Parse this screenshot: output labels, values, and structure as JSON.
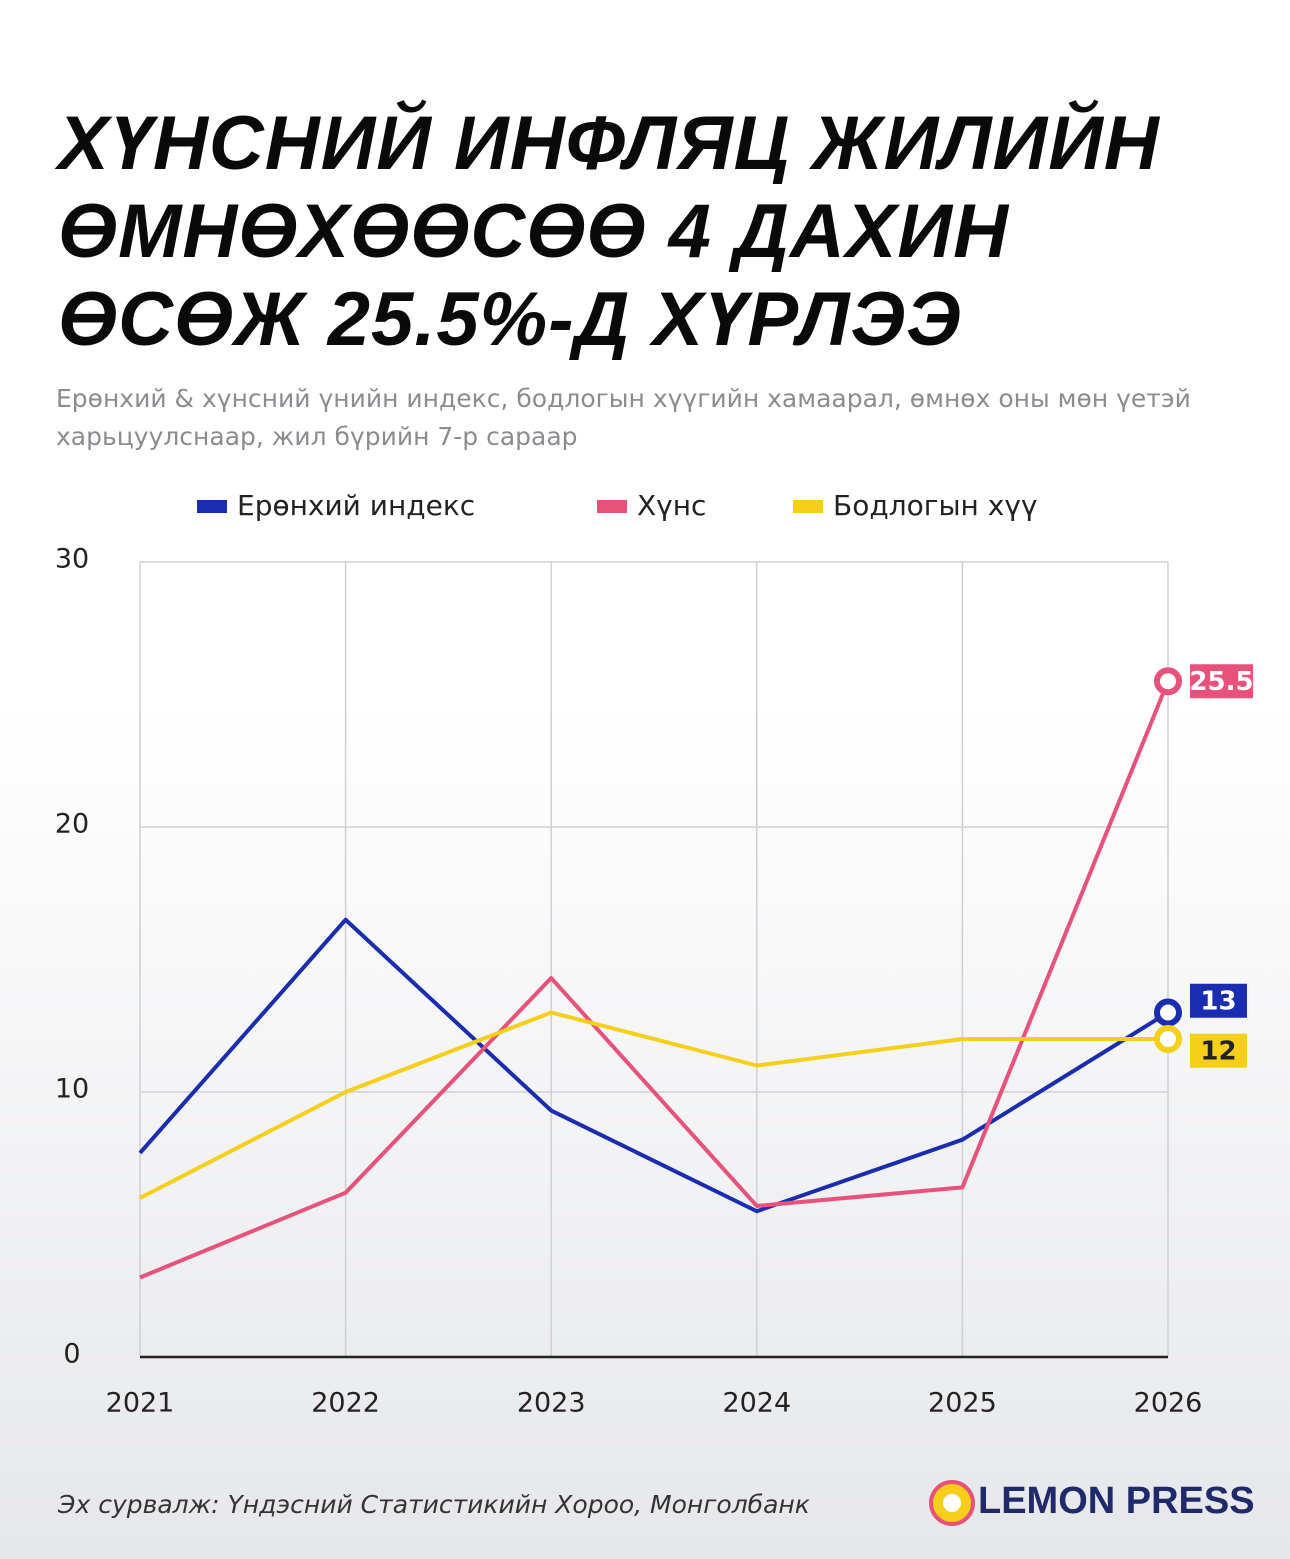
{
  "chart_data": {
    "type": "line",
    "title": "ХҮНСНИЙ ИНФЛЯЦ ЖИЛИЙН ӨМНӨХӨӨСӨӨ 4 ДАХИН ӨСӨЖ 25.5%-Д ХҮРЛЭЭ",
    "subtitle": "Ерөнхий & хүнсний үнийн индекс, бодлогын хүүгийн хамаарал, өмнөх оны мөн үетэй харьцуулснаар, жил бүрийн 7-р сараар",
    "x": [
      "2021",
      "2022",
      "2023",
      "2024",
      "2025",
      "2026"
    ],
    "series": [
      {
        "name": "Ерөнхий индекс",
        "color": "#1a2db0",
        "values": [
          7.7,
          16.5,
          9.3,
          5.5,
          8.2,
          13
        ]
      },
      {
        "name": "Хүнс",
        "color": "#e8517a",
        "values": [
          3.0,
          6.2,
          14.3,
          5.7,
          6.4,
          25.5
        ]
      },
      {
        "name": "Бодлогын хүү",
        "color": "#f5cf1a",
        "values": [
          6.0,
          10,
          13,
          11,
          12,
          12
        ]
      }
    ],
    "ylim": [
      0,
      30
    ],
    "yticks": [
      0,
      10,
      20,
      30
    ],
    "grid": true,
    "source": "Эх сурвалж: Үндэсний Статистикийн Хороо, Монголбанк",
    "logo": "LEMON PRESS"
  }
}
